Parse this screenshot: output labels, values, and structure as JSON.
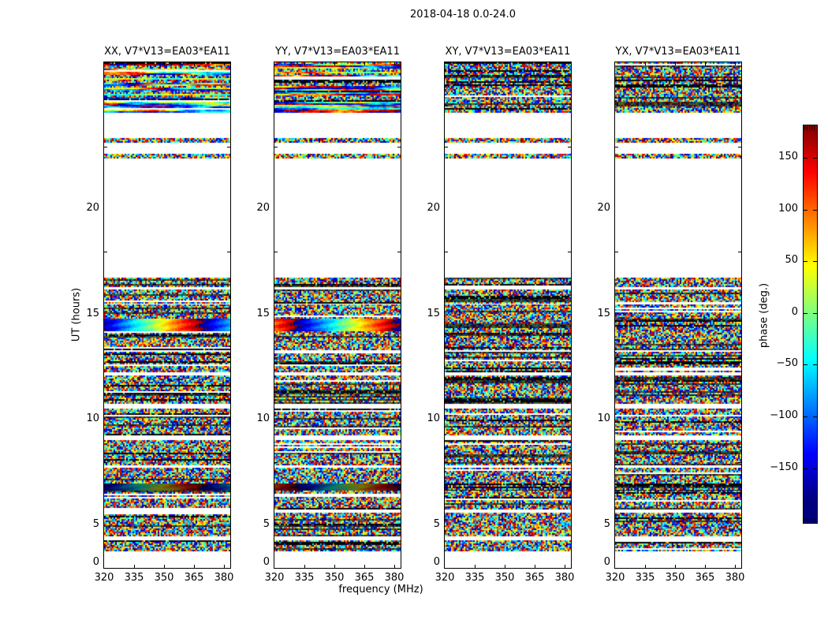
{
  "figure": {
    "title": "2018-04-18 0.0-24.0"
  },
  "panels": [
    {
      "title": "XX, V7*V13=EA03*EA11"
    },
    {
      "title": "YY, V7*V13=EA03*EA11"
    },
    {
      "title": "XY, V7*V13=EA03*EA11"
    },
    {
      "title": "YX, V7*V13=EA03*EA11"
    }
  ],
  "axes": {
    "x_label": "frequency (MHz)",
    "y_label": "UT (hours)",
    "x_ticks": [
      "320",
      "335",
      "350",
      "365",
      "380"
    ],
    "y_ticks": [
      "20",
      "15",
      "10",
      "5",
      "0"
    ]
  },
  "colorbar": {
    "label": "phase (deg.)",
    "ticks": [
      "150",
      "100",
      "50",
      "0",
      "−50",
      "−100",
      "−150"
    ]
  },
  "chart_data": {
    "type": "heatmap",
    "title": "2018-04-18 0.0-24.0",
    "panels": [
      "XX, V7*V13=EA03*EA11",
      "YY, V7*V13=EA03*EA11",
      "XY, V7*V13=EA03*EA11",
      "YX, V7*V13=EA03*EA11"
    ],
    "xlabel": "frequency (MHz)",
    "ylabel": "UT (hours)",
    "xlim": [
      320,
      383
    ],
    "ylim": [
      0,
      24
    ],
    "x_ticks": [
      320,
      335,
      350,
      365,
      380
    ],
    "y_ticks": [
      0,
      5,
      10,
      15,
      20
    ],
    "colorbar": {
      "label": "phase (deg.)",
      "min": -180,
      "max": 180,
      "tick_step": 50,
      "colormap": "jet"
    },
    "smooth_fringe_panels": [
      0,
      1
    ],
    "fringe_phase_offsets": [
      0.05,
      0.8
    ],
    "time_bands_ut_hours": [
      {
        "range": [
          21.65,
          24.0
        ],
        "kind": "top"
      },
      {
        "range": [
          20.2,
          20.4
        ],
        "kind": "noise"
      },
      {
        "range": [
          19.45,
          19.65
        ],
        "kind": "bright"
      },
      {
        "range": [
          13.4,
          13.75
        ],
        "kind": "noise"
      },
      {
        "range": [
          12.55,
          13.2
        ],
        "kind": "noise"
      },
      {
        "range": [
          11.85,
          12.5
        ],
        "kind": "noise"
      },
      {
        "range": [
          11.25,
          11.8
        ],
        "kind": "fringe"
      },
      {
        "range": [
          10.35,
          11.2
        ],
        "kind": "noise"
      },
      {
        "range": [
          9.3,
          10.25
        ],
        "kind": "noise"
      },
      {
        "range": [
          7.8,
          9.1
        ],
        "kind": "noise"
      },
      {
        "range": [
          6.3,
          7.55
        ],
        "kind": "noise"
      },
      {
        "range": [
          4.9,
          6.05
        ],
        "kind": "noise"
      },
      {
        "range": [
          4.05,
          4.75
        ],
        "kind": "noise"
      },
      {
        "range": [
          3.7,
          4.0
        ],
        "kind": "darkfringe"
      },
      {
        "range": [
          2.8,
          3.65
        ],
        "kind": "noise"
      },
      {
        "range": [
          1.55,
          2.6
        ],
        "kind": "noise"
      },
      {
        "range": [
          0.8,
          1.3
        ],
        "kind": "noise"
      }
    ]
  }
}
